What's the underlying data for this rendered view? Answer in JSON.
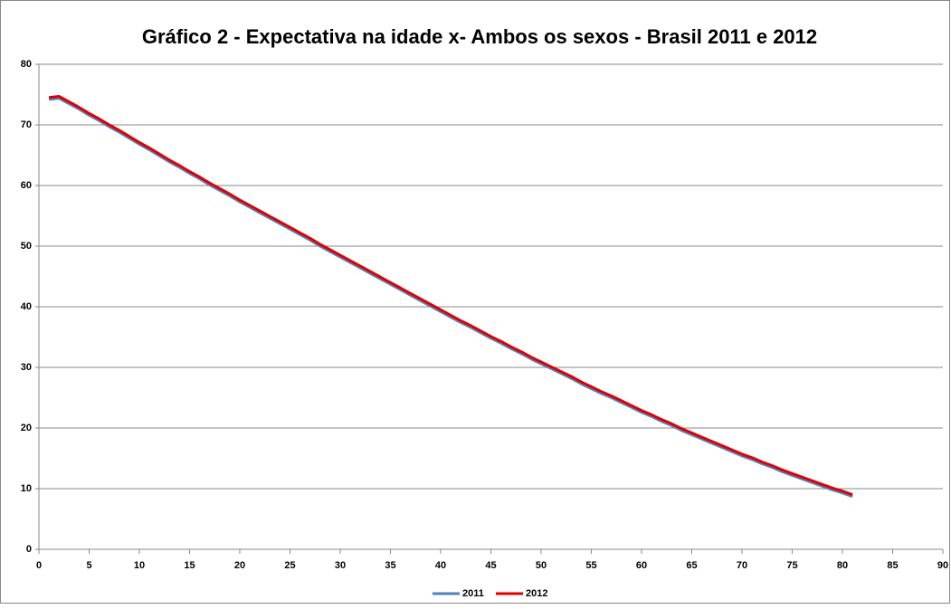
{
  "chart_data": {
    "type": "line",
    "title": "Gráfico 2 - Expectativa na idade x- Ambos os sexos - Brasil 2011 e 2012",
    "x": [
      1,
      2,
      3,
      4,
      5,
      6,
      7,
      8,
      9,
      10,
      11,
      12,
      13,
      14,
      15,
      16,
      17,
      18,
      19,
      20,
      21,
      22,
      23,
      24,
      25,
      26,
      27,
      28,
      29,
      30,
      31,
      32,
      33,
      34,
      35,
      36,
      37,
      38,
      39,
      40,
      41,
      42,
      43,
      44,
      45,
      46,
      47,
      48,
      49,
      50,
      51,
      52,
      53,
      54,
      55,
      56,
      57,
      58,
      59,
      60,
      61,
      62,
      63,
      64,
      65,
      66,
      67,
      68,
      69,
      70,
      71,
      72,
      73,
      74,
      75,
      76,
      77,
      78,
      79,
      80,
      81
    ],
    "series": [
      {
        "name": "2011",
        "color": "#4f81bd",
        "values": [
          74.2,
          74.4,
          73.5,
          72.6,
          71.6,
          70.7,
          69.7,
          68.8,
          67.8,
          66.8,
          65.9,
          64.9,
          63.9,
          63.0,
          62.0,
          61.1,
          60.1,
          59.2,
          58.3,
          57.3,
          56.4,
          55.5,
          54.6,
          53.7,
          52.8,
          51.9,
          51.0,
          50.0,
          49.1,
          48.2,
          47.3,
          46.4,
          45.5,
          44.6,
          43.7,
          42.8,
          41.9,
          41.0,
          40.1,
          39.2,
          38.3,
          37.4,
          36.6,
          35.7,
          34.8,
          34.0,
          33.1,
          32.3,
          31.4,
          30.6,
          29.8,
          29.0,
          28.2,
          27.3,
          26.5,
          25.7,
          25.0,
          24.2,
          23.4,
          22.6,
          21.9,
          21.1,
          20.4,
          19.6,
          18.9,
          18.2,
          17.5,
          16.8,
          16.1,
          15.4,
          14.8,
          14.1,
          13.5,
          12.8,
          12.2,
          11.6,
          11.0,
          10.4,
          9.8,
          9.3,
          8.7
        ]
      },
      {
        "name": "2012",
        "color": "#e00000",
        "values": [
          74.5,
          74.7,
          73.8,
          72.9,
          71.9,
          71.0,
          70.0,
          69.1,
          68.1,
          67.1,
          66.2,
          65.2,
          64.2,
          63.3,
          62.3,
          61.4,
          60.4,
          59.5,
          58.6,
          57.6,
          56.7,
          55.8,
          54.9,
          54.0,
          53.1,
          52.2,
          51.3,
          50.3,
          49.4,
          48.5,
          47.6,
          46.7,
          45.8,
          44.9,
          44.0,
          43.1,
          42.2,
          41.3,
          40.4,
          39.5,
          38.6,
          37.7,
          36.9,
          36.0,
          35.1,
          34.3,
          33.4,
          32.6,
          31.7,
          30.9,
          30.1,
          29.3,
          28.5,
          27.6,
          26.8,
          26.0,
          25.3,
          24.5,
          23.7,
          22.9,
          22.2,
          21.4,
          20.7,
          19.9,
          19.2,
          18.5,
          17.8,
          17.1,
          16.4,
          15.7,
          15.1,
          14.4,
          13.8,
          13.1,
          12.5,
          11.9,
          11.3,
          10.7,
          10.1,
          9.6,
          9.0
        ]
      }
    ],
    "xlim": [
      0,
      90
    ],
    "xticks": [
      0,
      5,
      10,
      15,
      20,
      25,
      30,
      35,
      40,
      45,
      50,
      55,
      60,
      65,
      70,
      75,
      80,
      85,
      90
    ],
    "ylim": [
      0,
      80
    ],
    "yticks": [
      0,
      10,
      20,
      30,
      40,
      50,
      60,
      70,
      80
    ],
    "grid": true,
    "legend": "bottom"
  }
}
